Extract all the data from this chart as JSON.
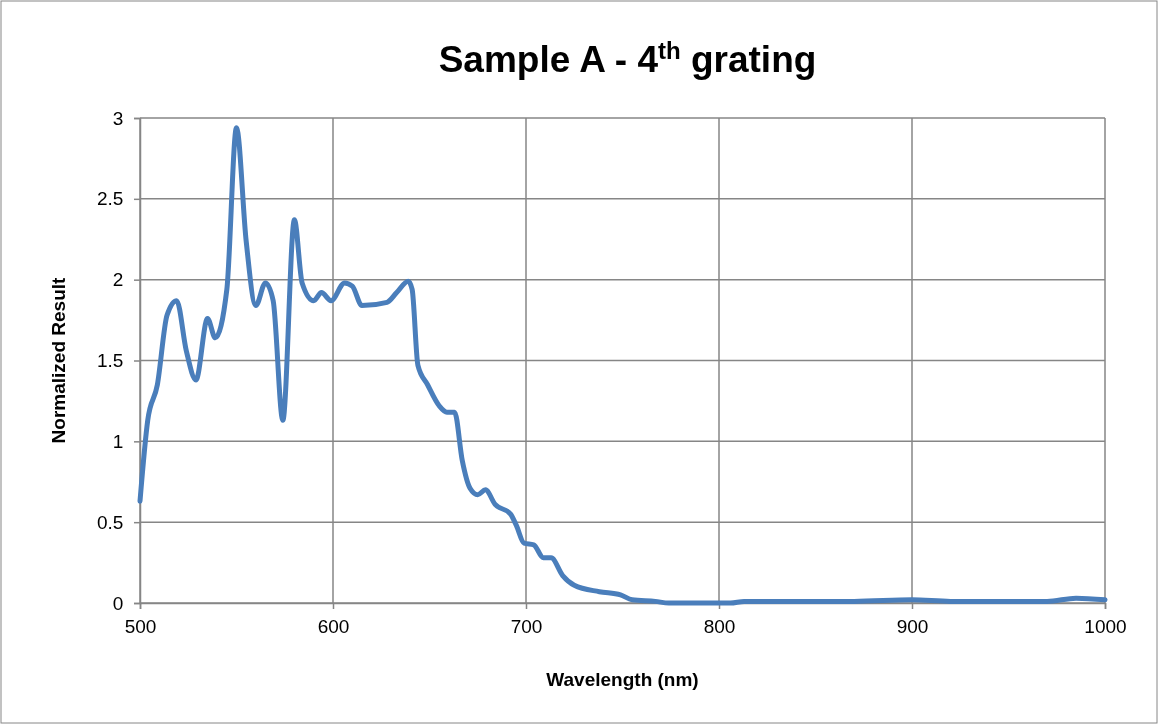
{
  "chart_data": {
    "type": "line",
    "title": "Sample A - 4$^{th}$ grating",
    "xlabel": "Wavelength (nm)",
    "ylabel": "Normalized Result",
    "x": [
      500,
      504,
      509,
      514,
      519,
      524,
      529,
      535,
      539,
      545,
      550,
      555,
      560,
      565,
      569,
      574,
      580,
      584,
      590,
      594,
      599,
      606,
      610,
      615,
      628,
      633,
      639,
      641,
      644,
      649,
      655,
      659,
      663,
      667,
      671,
      675,
      679,
      684,
      692,
      695,
      699,
      704,
      709,
      713,
      719,
      725,
      738,
      749,
      755,
      767,
      774,
      790,
      806,
      813,
      830,
      850,
      870,
      900,
      920,
      950,
      970,
      985,
      1000
    ],
    "series": [
      {
        "color": "#4a7ebb",
        "values": [
          0.63,
          1.13,
          1.35,
          1.78,
          1.87,
          1.56,
          1.38,
          1.76,
          1.64,
          1.94,
          2.94,
          2.24,
          1.84,
          1.98,
          1.87,
          1.13,
          2.37,
          1.98,
          1.87,
          1.92,
          1.87,
          1.98,
          1.96,
          1.84,
          1.86,
          1.92,
          1.99,
          1.94,
          1.47,
          1.35,
          1.22,
          1.18,
          1.18,
          0.88,
          0.71,
          0.67,
          0.7,
          0.61,
          0.55,
          0.48,
          0.37,
          0.36,
          0.28,
          0.28,
          0.17,
          0.11,
          0.07,
          0.05,
          0.02,
          0.01,
          0,
          0,
          0,
          0.01,
          0.01,
          0.01,
          0.01,
          0.02,
          0.01,
          0.01,
          0.01,
          0.03,
          0.02
        ]
      }
    ],
    "xlim": [
      500,
      1000
    ],
    "xticks": [
      500,
      600,
      700,
      800,
      900,
      1000
    ],
    "ylim": [
      0,
      3
    ],
    "yticks": [
      0,
      0.5,
      1,
      1.5,
      2,
      2.5,
      3
    ],
    "grid": true,
    "marker": "none",
    "line_style": "solid"
  }
}
